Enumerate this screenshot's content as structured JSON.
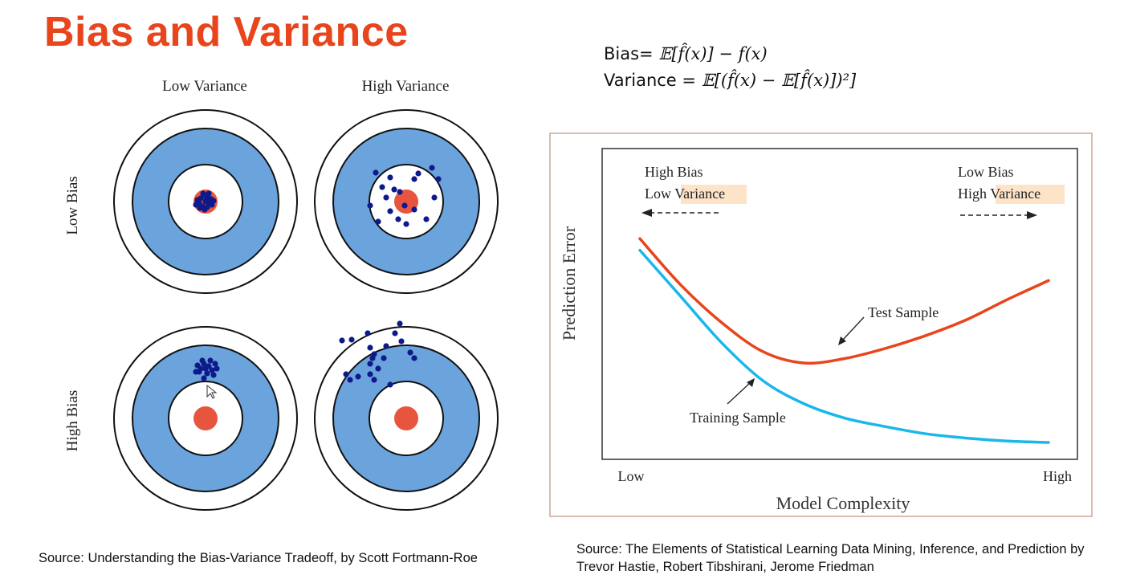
{
  "title": "Bias and Variance",
  "formulas": {
    "bias_label": "Bias=",
    "bias_expr": "𝔼[f̂(x)] − f(x)",
    "variance_label": "Variance =",
    "variance_expr": "𝔼[(f̂(x) − 𝔼[f̂(x)])²]"
  },
  "targets": {
    "column_labels": [
      "Low Variance",
      "High Variance"
    ],
    "row_labels": [
      "Low Bias",
      "High Bias"
    ],
    "colors": {
      "ring": "#6ba3dc",
      "bullseye": "#e8553e",
      "dots": "#0f1a8a",
      "stroke": "#111111"
    }
  },
  "chart_data": {
    "type": "line",
    "xlabel": "Model Complexity",
    "ylabel": "Prediction Error",
    "x_tick_labels": [
      "Low",
      "High"
    ],
    "x": [
      0,
      0.1,
      0.2,
      0.3,
      0.4,
      0.5,
      0.6,
      0.7,
      0.8,
      0.9,
      1.0
    ],
    "series": [
      {
        "name": "Test Sample",
        "color": "#e8451c",
        "values": [
          0.73,
          0.57,
          0.44,
          0.34,
          0.3,
          0.315,
          0.35,
          0.395,
          0.45,
          0.52,
          0.585
        ]
      },
      {
        "name": "Training Sample",
        "color": "#1ab7ea",
        "values": [
          0.69,
          0.53,
          0.37,
          0.24,
          0.16,
          0.11,
          0.08,
          0.055,
          0.04,
          0.03,
          0.025
        ]
      }
    ],
    "ylim": [
      0,
      1
    ],
    "grid": false,
    "annotations": {
      "left_line1": "High Bias",
      "left_line2_a": "Low ",
      "left_line2_b": "Variance",
      "right_line1": "Low Bias",
      "right_line2_a": "High ",
      "right_line2_b": "Variance",
      "highlight_color": "#fde3c8"
    }
  },
  "sources": {
    "left": "Source: Understanding the Bias-Variance Tradeoff, by Scott Fortmann-Roe",
    "right": "Source: The Elements of Statistical Learning Data Mining, Inference, and Prediction by Trevor Hastie, Robert Tibshirani, Jerome Friedman"
  }
}
